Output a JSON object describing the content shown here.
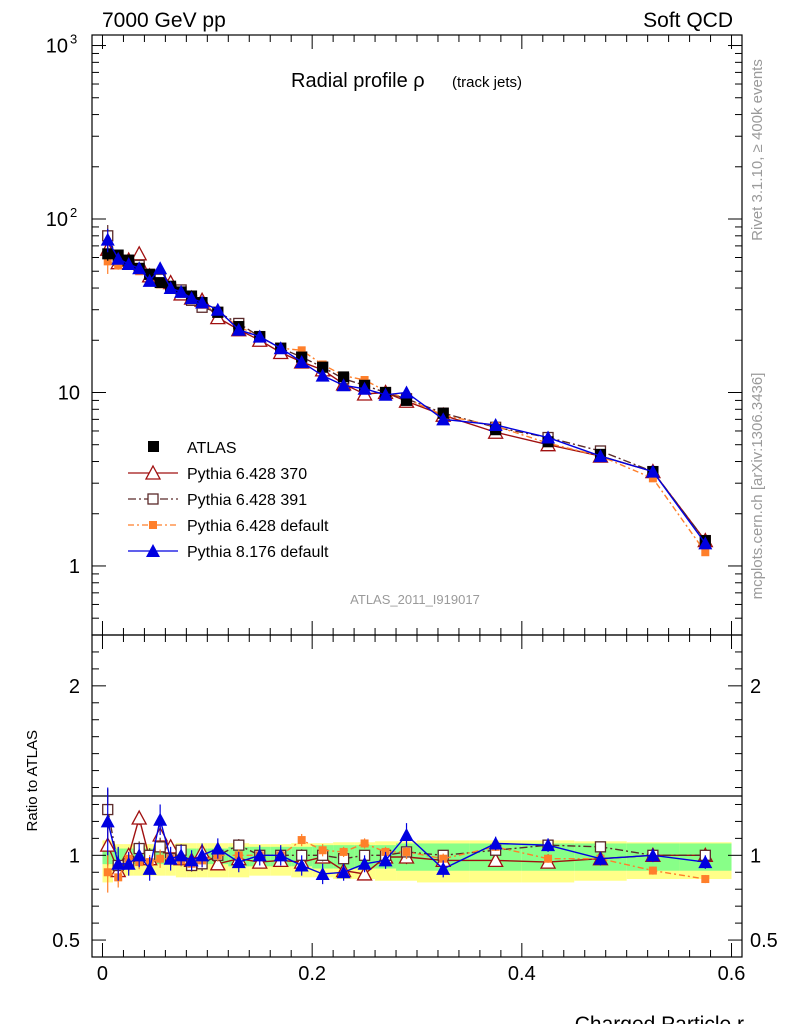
{
  "header": {
    "left": "7000 GeV pp",
    "right": "Soft QCD"
  },
  "side": {
    "rivet": "Rivet 3.1.10, ≥ 400k events",
    "mcplots": "mcplots.cern.ch [arXiv:1306.3436]"
  },
  "colors": {
    "atlas": "#000000",
    "p370": "#a01010",
    "p391": "#5a2a2a",
    "pdef": "#ff7f2a",
    "p8": "#0000e0",
    "band_outer": "#ffff88",
    "band_inner": "#88ff88"
  },
  "chart_data": [
    {
      "type": "scatter",
      "title": "Radial profile ρ",
      "title_sub": "(track jets)",
      "watermark": "ATLAS_2011_I919017",
      "ylabel": "",
      "yscale": "log",
      "ylim": [
        0.4,
        1150
      ],
      "xlim": [
        -0.01,
        0.61
      ],
      "yticks": [
        {
          "v": 1,
          "label": "1"
        },
        {
          "v": 10,
          "label": "10"
        },
        {
          "v": 100,
          "label": "10",
          "sup": "2"
        },
        {
          "v": 1000,
          "label": "10",
          "sup": "3"
        }
      ],
      "legend_position": "center-left",
      "x": [
        0.005,
        0.015,
        0.025,
        0.035,
        0.045,
        0.055,
        0.065,
        0.075,
        0.085,
        0.095,
        0.11,
        0.13,
        0.15,
        0.17,
        0.19,
        0.21,
        0.23,
        0.25,
        0.27,
        0.29,
        0.325,
        0.375,
        0.425,
        0.475,
        0.525,
        0.575
      ],
      "series": [
        {
          "name": "ATLAS",
          "marker": "square-filled",
          "values": [
            63,
            62,
            58,
            52,
            48,
            43,
            41,
            38,
            36,
            33,
            29,
            24,
            21,
            18,
            16,
            14,
            12.3,
            11,
            10,
            9,
            7.6,
            6.1,
            5.2,
            4.4,
            3.5,
            1.4
          ]
        },
        {
          "name": "Pythia 6.428 370",
          "marker": "triangle-open",
          "values": [
            67,
            56,
            58,
            63,
            47,
            48,
            43,
            37,
            35,
            34,
            27,
            23,
            20,
            17,
            15,
            13.5,
            11.2,
            9.8,
            10,
            8.9,
            7.4,
            5.9,
            5.0,
            4.3,
            3.5,
            1.4
          ]
        },
        {
          "name": "Pythia 6.428 391",
          "marker": "square-open",
          "values": [
            80,
            58,
            55,
            54,
            48,
            45,
            40,
            39,
            34,
            31,
            29,
            25,
            21,
            18,
            16,
            14,
            12,
            11,
            10,
            9.2,
            7.6,
            6.3,
            5.5,
            4.6,
            3.5,
            1.4
          ]
        },
        {
          "name": "Pythia 6.428 default",
          "marker": "square-filled-small",
          "values": [
            57,
            54,
            57,
            50,
            46,
            42,
            40,
            37,
            34,
            32,
            29,
            24,
            21,
            18,
            17.5,
            14.5,
            12.5,
            11.8,
            10.2,
            9.2,
            7.4,
            6.4,
            5.1,
            4.3,
            3.2,
            1.2
          ]
        },
        {
          "name": "Pythia 8.176 default",
          "marker": "triangle-filled",
          "values": [
            76,
            59,
            55,
            52,
            44,
            52,
            40,
            38,
            35,
            33,
            30,
            23,
            21,
            18,
            15,
            12.5,
            11,
            10.5,
            9.7,
            10,
            7,
            6.5,
            5.5,
            4.3,
            3.5,
            1.35
          ]
        }
      ],
      "errors": [
        0.22,
        0.08,
        0.06,
        0.06,
        0.06,
        0.07,
        0.06,
        0.06,
        0.06,
        0.07,
        0.06,
        0.06,
        0.06,
        0.06,
        0.06,
        0.06,
        0.05,
        0.05,
        0.05,
        0.07,
        0.05,
        0.04,
        0.04,
        0.04,
        0.04,
        0.04
      ]
    },
    {
      "type": "scatter",
      "ylabel": "Ratio to ATLAS",
      "xlabel": "Charged Particle r",
      "ylim": [
        0.4,
        2.3
      ],
      "xlim": [
        -0.01,
        0.61
      ],
      "xticks": [
        {
          "v": 0,
          "label": "0"
        },
        {
          "v": 0.2,
          "label": "0.2"
        },
        {
          "v": 0.4,
          "label": "0.4"
        },
        {
          "v": 0.6,
          "label": "0.6"
        }
      ],
      "yticks": [
        {
          "v": 0.5,
          "label": "0.5"
        },
        {
          "v": 1,
          "label": "1"
        },
        {
          "v": 2,
          "label": "2"
        }
      ],
      "band_edges": [
        0,
        0.01,
        0.02,
        0.03,
        0.04,
        0.05,
        0.06,
        0.07,
        0.08,
        0.09,
        0.1,
        0.12,
        0.14,
        0.16,
        0.18,
        0.2,
        0.22,
        0.24,
        0.26,
        0.28,
        0.3,
        0.35,
        0.4,
        0.45,
        0.5,
        0.55,
        0.6
      ],
      "band_outer": [
        0.16,
        0.12,
        0.12,
        0.12,
        0.12,
        0.12,
        0.12,
        0.13,
        0.13,
        0.13,
        0.13,
        0.13,
        0.12,
        0.12,
        0.13,
        0.13,
        0.14,
        0.14,
        0.15,
        0.15,
        0.16,
        0.16,
        0.16,
        0.15,
        0.14,
        0.14
      ],
      "band_inner": [
        0.04,
        0.04,
        0.04,
        0.04,
        0.04,
        0.04,
        0.04,
        0.04,
        0.04,
        0.04,
        0.04,
        0.05,
        0.05,
        0.05,
        0.05,
        0.06,
        0.06,
        0.06,
        0.06,
        0.07,
        0.07,
        0.07,
        0.07,
        0.07,
        0.07,
        0.07
      ],
      "series": [
        {
          "name": "Pythia 6.428 370",
          "values": [
            1.06,
            0.91,
            1.0,
            1.22,
            0.98,
            1.12,
            1.05,
            0.98,
            0.97,
            1.02,
            0.95,
            0.98,
            0.96,
            0.97,
            0.96,
            0.99,
            0.91,
            0.89,
            0.99,
            0.99,
            0.97,
            0.97,
            0.96,
            0.98,
            1.0,
            1.0
          ]
        },
        {
          "name": "Pythia 6.428 391",
          "values": [
            1.27,
            0.94,
            0.95,
            1.04,
            1.0,
            1.05,
            0.98,
            1.03,
            0.94,
            0.95,
            1.0,
            1.06,
            1.0,
            1.0,
            1.0,
            1.0,
            0.98,
            1.0,
            1.0,
            1.02,
            1.0,
            1.03,
            1.06,
            1.05,
            1.0,
            1.0
          ]
        },
        {
          "name": "Pythia 6.428 default",
          "values": [
            0.9,
            0.87,
            0.98,
            0.96,
            0.96,
            0.98,
            0.98,
            0.97,
            0.95,
            0.97,
            1.0,
            1.0,
            1.0,
            1.0,
            1.09,
            1.03,
            1.02,
            1.07,
            1.02,
            1.02,
            0.98,
            1.05,
            0.98,
            0.98,
            0.91,
            0.86
          ]
        },
        {
          "name": "Pythia 8.176 default",
          "values": [
            1.2,
            0.95,
            0.95,
            1.0,
            0.92,
            1.21,
            0.98,
            1.0,
            0.97,
            1.0,
            1.04,
            0.96,
            1.0,
            1.0,
            0.94,
            0.89,
            0.9,
            0.95,
            0.97,
            1.12,
            0.92,
            1.07,
            1.06,
            0.98,
            1.0,
            0.96
          ]
        }
      ],
      "errors": [
        0.2,
        0.1,
        0.07,
        0.07,
        0.07,
        0.09,
        0.07,
        0.06,
        0.06,
        0.07,
        0.06,
        0.06,
        0.06,
        0.06,
        0.06,
        0.06,
        0.05,
        0.05,
        0.05,
        0.07,
        0.05,
        0.04,
        0.04,
        0.04,
        0.04,
        0.04
      ]
    }
  ]
}
